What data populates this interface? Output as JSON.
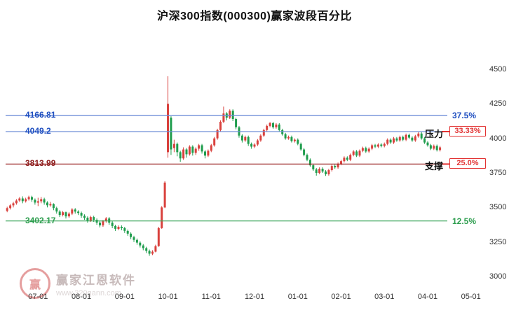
{
  "title": "沪深300指数(000300)赢家波段百分比",
  "watermark": {
    "brand": "赢家江恩软件",
    "url": "www.320gann.com",
    "logo_char": "赢"
  },
  "chart_data": {
    "type": "candlestick",
    "title": "沪深300指数(000300)赢家波段百分比",
    "grid": false,
    "colors": {
      "up": "#d9413d",
      "down": "#1f9d4d"
    },
    "y_axis": {
      "ticks": [
        4500,
        4250,
        4000,
        3750,
        3500,
        3250,
        3000
      ],
      "min": 3000,
      "max": 4500,
      "side": "right"
    },
    "x_axis": {
      "tick_labels": [
        "07-01",
        "08-01",
        "09-01",
        "10-01",
        "11-01",
        "12-01",
        "01-01",
        "02-01",
        "03-01",
        "04-01",
        "05-01"
      ],
      "tick_slots": [
        10,
        24,
        38,
        52,
        66,
        80,
        94,
        108,
        122,
        136,
        150
      ],
      "total_slots": 156
    },
    "levels": [
      {
        "value": 4166.81,
        "price_label": "4166.81",
        "pct_label": "37.5%",
        "style": "plain",
        "line_color": "#6f8fd8",
        "text_color": "#1f4fc0",
        "box_color": "#e23333",
        "side_label": ""
      },
      {
        "value": 4049.2,
        "price_label": "4049.2",
        "pct_label": "33.33%",
        "style": "boxed",
        "line_color": "#6f8fd8",
        "text_color": "#1f4fc0",
        "box_color": "#e23333",
        "side_label": "压力"
      },
      {
        "value": 3813.99,
        "price_label": "3813.99",
        "pct_label": "25.0%",
        "style": "boxed",
        "line_color": "#9e2b2b",
        "text_color": "#8b1a1a",
        "box_color": "#e23333",
        "side_label": "支撑"
      },
      {
        "value": 3402.17,
        "price_label": "3402.17",
        "pct_label": "12.5%",
        "style": "plain",
        "line_color": "#3aa55a",
        "text_color": "#2e9e4f",
        "box_color": "#e23333",
        "side_label": ""
      }
    ],
    "candles": [
      [
        3475,
        3505,
        3465,
        3495
      ],
      [
        3495,
        3525,
        3485,
        3515
      ],
      [
        3515,
        3540,
        3500,
        3530
      ],
      [
        3530,
        3560,
        3520,
        3550
      ],
      [
        3550,
        3575,
        3540,
        3565
      ],
      [
        3565,
        3580,
        3530,
        3545
      ],
      [
        3545,
        3570,
        3535,
        3560
      ],
      [
        3560,
        3585,
        3550,
        3575
      ],
      [
        3575,
        3585,
        3540,
        3555
      ],
      [
        3555,
        3565,
        3520,
        3535
      ],
      [
        3535,
        3570,
        3510,
        3545
      ],
      [
        3545,
        3575,
        3530,
        3560
      ],
      [
        3560,
        3570,
        3520,
        3535
      ],
      [
        3535,
        3545,
        3500,
        3515
      ],
      [
        3515,
        3540,
        3505,
        3525
      ],
      [
        3525,
        3530,
        3480,
        3495
      ],
      [
        3495,
        3505,
        3455,
        3470
      ],
      [
        3470,
        3480,
        3430,
        3445
      ],
      [
        3445,
        3475,
        3435,
        3465
      ],
      [
        3465,
        3470,
        3420,
        3435
      ],
      [
        3435,
        3465,
        3425,
        3455
      ],
      [
        3455,
        3495,
        3445,
        3485
      ],
      [
        3485,
        3495,
        3455,
        3470
      ],
      [
        3470,
        3480,
        3445,
        3460
      ],
      [
        3460,
        3470,
        3425,
        3440
      ],
      [
        3440,
        3450,
        3410,
        3425
      ],
      [
        3425,
        3435,
        3390,
        3405
      ],
      [
        3405,
        3440,
        3395,
        3430
      ],
      [
        3430,
        3440,
        3395,
        3410
      ],
      [
        3410,
        3420,
        3375,
        3390
      ],
      [
        3390,
        3400,
        3355,
        3370
      ],
      [
        3370,
        3410,
        3360,
        3400
      ],
      [
        3400,
        3430,
        3390,
        3420
      ],
      [
        3420,
        3430,
        3375,
        3390
      ],
      [
        3390,
        3400,
        3350,
        3365
      ],
      [
        3365,
        3375,
        3330,
        3345
      ],
      [
        3345,
        3370,
        3335,
        3360
      ],
      [
        3360,
        3370,
        3335,
        3350
      ],
      [
        3350,
        3360,
        3315,
        3330
      ],
      [
        3330,
        3340,
        3295,
        3310
      ],
      [
        3310,
        3320,
        3270,
        3285
      ],
      [
        3285,
        3295,
        3250,
        3265
      ],
      [
        3265,
        3275,
        3230,
        3245
      ],
      [
        3245,
        3255,
        3210,
        3225
      ],
      [
        3225,
        3235,
        3190,
        3205
      ],
      [
        3205,
        3215,
        3170,
        3185
      ],
      [
        3185,
        3195,
        3150,
        3165
      ],
      [
        3165,
        3190,
        3155,
        3180
      ],
      [
        3180,
        3230,
        3175,
        3220
      ],
      [
        3220,
        3360,
        3215,
        3350
      ],
      [
        3350,
        3510,
        3345,
        3500
      ],
      [
        3500,
        3690,
        3495,
        3680
      ],
      [
        3900,
        4450,
        3860,
        4250
      ],
      [
        4150,
        4160,
        3880,
        3920
      ],
      [
        3930,
        3990,
        3900,
        3960
      ],
      [
        3960,
        3970,
        3870,
        3900
      ],
      [
        3900,
        3910,
        3830,
        3855
      ],
      [
        3855,
        3935,
        3845,
        3920
      ],
      [
        3920,
        3930,
        3860,
        3885
      ],
      [
        3885,
        3950,
        3875,
        3940
      ],
      [
        3940,
        3950,
        3875,
        3895
      ],
      [
        3895,
        3935,
        3880,
        3925
      ],
      [
        3925,
        3960,
        3910,
        3950
      ],
      [
        3950,
        3960,
        3890,
        3905
      ],
      [
        3905,
        3915,
        3855,
        3875
      ],
      [
        3875,
        3920,
        3865,
        3910
      ],
      [
        3910,
        3960,
        3900,
        3950
      ],
      [
        3950,
        4010,
        3940,
        4000
      ],
      [
        4000,
        4070,
        3990,
        4060
      ],
      [
        4060,
        4130,
        4050,
        4120
      ],
      [
        4120,
        4230,
        4110,
        4180
      ],
      [
        4180,
        4190,
        4130,
        4150
      ],
      [
        4150,
        4210,
        4140,
        4200
      ],
      [
        4200,
        4210,
        4125,
        4140
      ],
      [
        4140,
        4150,
        4065,
        4080
      ],
      [
        4080,
        4090,
        4005,
        4020
      ],
      [
        4020,
        4030,
        3970,
        3985
      ],
      [
        3985,
        4020,
        3975,
        4010
      ],
      [
        4010,
        4020,
        3945,
        3960
      ],
      [
        3960,
        3970,
        3925,
        3940
      ],
      [
        3940,
        3965,
        3930,
        3955
      ],
      [
        3955,
        3995,
        3945,
        3985
      ],
      [
        3985,
        4030,
        3975,
        4020
      ],
      [
        4020,
        4070,
        4010,
        4060
      ],
      [
        4060,
        4100,
        4050,
        4090
      ],
      [
        4090,
        4120,
        4080,
        4110
      ],
      [
        4110,
        4120,
        4070,
        4080
      ],
      [
        4080,
        4110,
        4070,
        4100
      ],
      [
        4100,
        4110,
        4050,
        4060
      ],
      [
        4060,
        4070,
        4020,
        4030
      ],
      [
        4030,
        4040,
        3990,
        4000
      ],
      [
        4000,
        4020,
        3990,
        4010
      ],
      [
        4010,
        4020,
        3970,
        3980
      ],
      [
        3980,
        4000,
        3970,
        3990
      ],
      [
        3990,
        4000,
        3950,
        3960
      ],
      [
        3960,
        3970,
        3910,
        3920
      ],
      [
        3920,
        3930,
        3870,
        3880
      ],
      [
        3880,
        3890,
        3835,
        3845
      ],
      [
        3845,
        3855,
        3795,
        3805
      ],
      [
        3805,
        3815,
        3765,
        3775
      ],
      [
        3775,
        3785,
        3730,
        3750
      ],
      [
        3750,
        3790,
        3740,
        3780
      ],
      [
        3780,
        3790,
        3750,
        3760
      ],
      [
        3760,
        3770,
        3728,
        3740
      ],
      [
        3740,
        3780,
        3730,
        3770
      ],
      [
        3770,
        3810,
        3760,
        3800
      ],
      [
        3800,
        3810,
        3780,
        3790
      ],
      [
        3790,
        3825,
        3780,
        3815
      ],
      [
        3815,
        3845,
        3805,
        3835
      ],
      [
        3835,
        3870,
        3825,
        3860
      ],
      [
        3860,
        3870,
        3835,
        3845
      ],
      [
        3845,
        3890,
        3835,
        3880
      ],
      [
        3880,
        3915,
        3870,
        3905
      ],
      [
        3905,
        3915,
        3865,
        3875
      ],
      [
        3875,
        3920,
        3865,
        3910
      ],
      [
        3910,
        3940,
        3900,
        3930
      ],
      [
        3930,
        3940,
        3895,
        3905
      ],
      [
        3905,
        3935,
        3895,
        3925
      ],
      [
        3925,
        3960,
        3915,
        3950
      ],
      [
        3950,
        3960,
        3930,
        3940
      ],
      [
        3940,
        3965,
        3930,
        3955
      ],
      [
        3955,
        3965,
        3935,
        3945
      ],
      [
        3945,
        3970,
        3935,
        3960
      ],
      [
        3960,
        4000,
        3950,
        3990
      ],
      [
        3990,
        4000,
        3960,
        3970
      ],
      [
        3970,
        4010,
        3960,
        4000
      ],
      [
        4000,
        4010,
        3975,
        3985
      ],
      [
        3985,
        4020,
        3975,
        4010
      ],
      [
        4010,
        4020,
        3980,
        3990
      ],
      [
        3990,
        4035,
        3980,
        4025
      ],
      [
        4025,
        4035,
        3995,
        4005
      ],
      [
        4005,
        4015,
        3975,
        3985
      ],
      [
        3985,
        4025,
        3975,
        4015
      ],
      [
        4015,
        4045,
        4005,
        4035
      ],
      [
        4035,
        4045,
        3990,
        4000
      ],
      [
        4000,
        4010,
        3960,
        3970
      ],
      [
        3970,
        3980,
        3940,
        3950
      ],
      [
        3950,
        3960,
        3915,
        3925
      ],
      [
        3925,
        3955,
        3915,
        3945
      ],
      [
        3945,
        3955,
        3905,
        3915
      ],
      [
        3915,
        3945,
        3905,
        3935
      ]
    ]
  }
}
